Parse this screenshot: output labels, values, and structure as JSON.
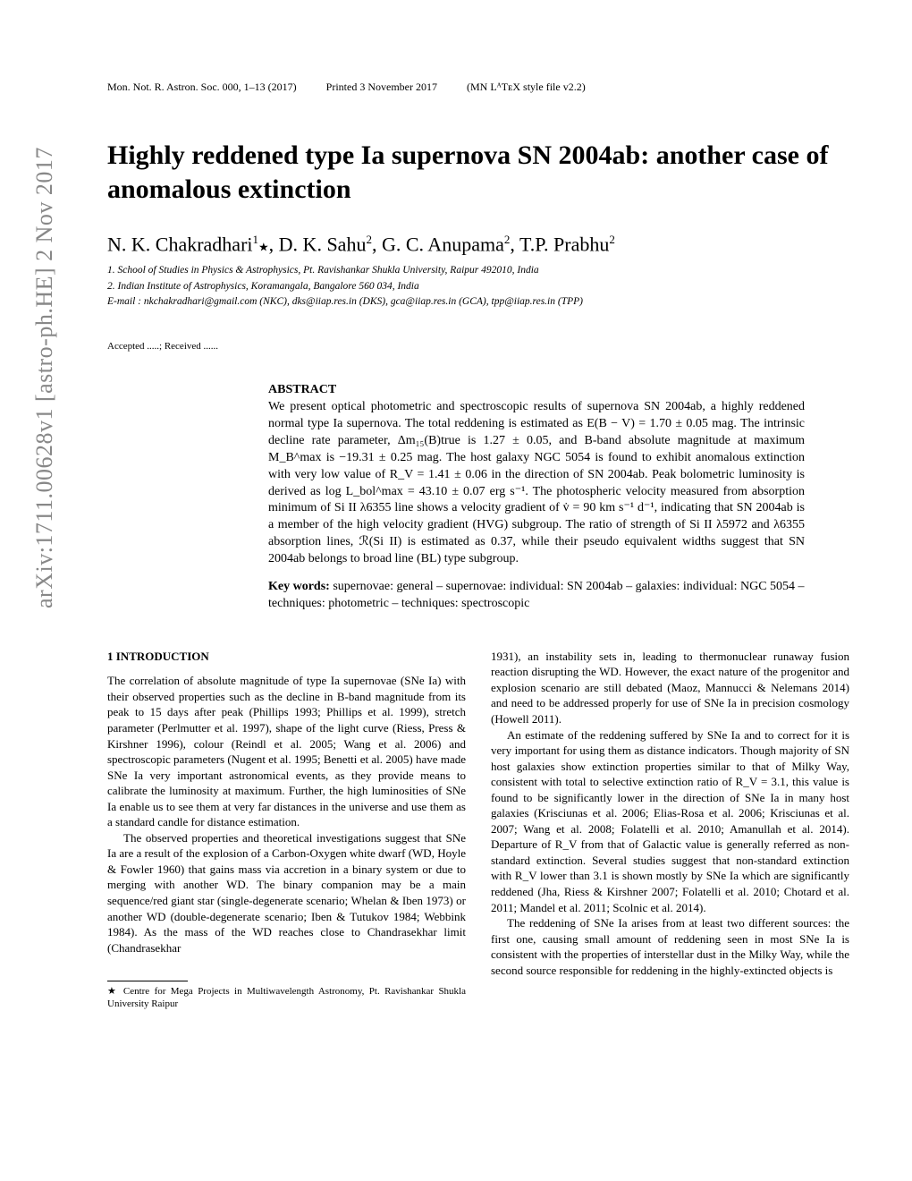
{
  "arxiv_stamp": "arXiv:1711.00628v1 [astro-ph.HE]  2 Nov 2017",
  "header": {
    "journal": "Mon. Not. R. Astron. Soc. 000, 1–13 (2017)",
    "printed": "Printed 3 November 2017",
    "style": "(MN LᴬTᴇX style file v2.2)"
  },
  "title": "Highly reddened type Ia supernova SN 2004ab: another case of anomalous extinction",
  "authors_html": "N. K. Chakradhari<sup>1</sup><span class='star'>★</span>, D. K. Sahu<sup>2</sup>, G. C. Anupama<sup>2</sup>, T.P. Prabhu<sup>2</sup>",
  "affiliations": [
    "1. School of Studies in Physics & Astrophysics, Pt. Ravishankar Shukla University, Raipur 492010, India",
    "2. Indian Institute of Astrophysics, Koramangala, Bangalore 560 034, India",
    "E-mail : nkchakradhari@gmail.com (NKC), dks@iiap.res.in (DKS), gca@iiap.res.in (GCA), tpp@iiap.res.in (TPP)"
  ],
  "dates": "Accepted .....; Received ......",
  "abstract_heading": "ABSTRACT",
  "abstract": "We present optical photometric and spectroscopic results of supernova SN 2004ab, a highly reddened normal type Ia supernova. The total reddening is estimated as E(B − V) = 1.70 ± 0.05 mag. The intrinsic decline rate parameter, Δm₁₅(B)true is 1.27 ± 0.05, and B-band absolute magnitude at maximum M_B^max is −19.31 ± 0.25 mag. The host galaxy NGC 5054 is found to exhibit anomalous extinction with very low value of R_V = 1.41 ± 0.06 in the direction of SN 2004ab. Peak bolometric luminosity is derived as log L_bol^max = 43.10 ± 0.07 erg s⁻¹. The photospheric velocity measured from absorption minimum of Si II λ6355 line shows a velocity gradient of v̇ = 90 km s⁻¹ d⁻¹, indicating that SN 2004ab is a member of the high velocity gradient (HVG) subgroup. The ratio of strength of Si II λ5972 and λ6355 absorption lines, ℛ(Si II) is estimated as 0.37, while their pseudo equivalent widths suggest that SN 2004ab belongs to broad line (BL) type subgroup.",
  "keywords_label": "Key words:",
  "keywords": "supernovae: general – supernovae: individual: SN 2004ab – galaxies: individual: NGC 5054 – techniques: photometric – techniques: spectroscopic",
  "section_heading": "1   INTRODUCTION",
  "col1_p1": "The correlation of absolute magnitude of type Ia supernovae (SNe Ia) with their observed properties such as the decline in B-band magnitude from its peak to 15 days after peak (Phillips 1993; Phillips et al. 1999), stretch parameter (Perlmutter et al. 1997), shape of the light curve (Riess, Press & Kirshner 1996), colour (Reindl et al. 2005; Wang et al. 2006) and spectroscopic parameters (Nugent et al. 1995; Benetti et al. 2005) have made SNe Ia very important astronomical events, as they provide means to calibrate the luminosity at maximum. Further, the high luminosities of SNe Ia enable us to see them at very far distances in the universe and use them as a standard candle for distance estimation.",
  "col1_p2": "The observed properties and theoretical investigations suggest that SNe Ia are a result of the explosion of a Carbon-Oxygen white dwarf (WD, Hoyle & Fowler 1960) that gains mass via accretion in a binary system or due to merging with another WD. The binary companion may be a main sequence/red giant star (single-degenerate scenario; Whelan & Iben 1973) or another WD (double-degenerate scenario; Iben & Tutukov 1984; Webbink 1984). As the mass of the WD reaches close to Chandrasekhar limit (Chandrasekhar",
  "col2_p1": "1931), an instability sets in, leading to thermonuclear runaway fusion reaction disrupting the WD. However, the exact nature of the progenitor and explosion scenario are still debated (Maoz, Mannucci & Nelemans 2014) and need to be addressed properly for use of SNe Ia in precision cosmology (Howell 2011).",
  "col2_p2": "An estimate of the reddening suffered by SNe Ia and to correct for it is very important for using them as distance indicators. Though majority of SN host galaxies show extinction properties similar to that of Milky Way, consistent with total to selective extinction ratio of R_V = 3.1, this value is found to be significantly lower in the direction of SNe Ia in many host galaxies (Krisciunas et al. 2006; Elias-Rosa et al. 2006; Krisciunas et al. 2007; Wang et al. 2008; Folatelli et al. 2010; Amanullah et al. 2014). Departure of R_V from that of Galactic value is generally referred as non-standard extinction. Several studies suggest that non-standard extinction with R_V lower than 3.1 is shown mostly by SNe Ia which are significantly reddened (Jha, Riess & Kirshner 2007; Folatelli et al. 2010; Chotard et al. 2011; Mandel et al. 2011; Scolnic et al. 2014).",
  "col2_p3": "The reddening of SNe Ia arises from at least two different sources: the first one, causing small amount of reddening seen in most SNe Ia is consistent with the properties of interstellar dust in the Milky Way, while the second source responsible for reddening in the highly-extincted objects is",
  "footnote": "★ Centre for Mega Projects in Multiwavelength Astronomy, Pt. Ravishankar Shukla University Raipur"
}
